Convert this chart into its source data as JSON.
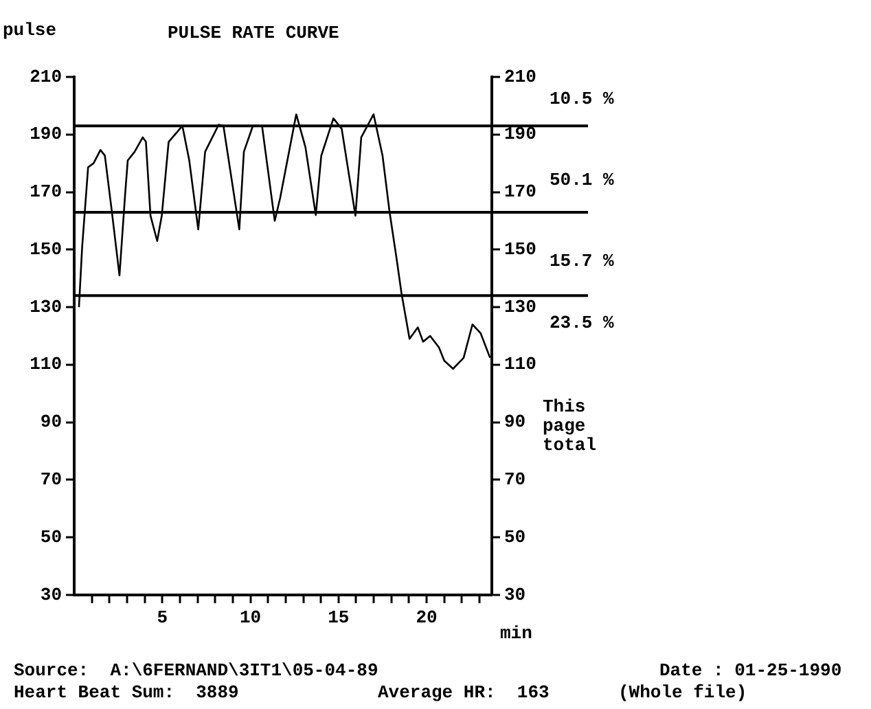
{
  "chart_data": {
    "type": "line",
    "title": "PULSE RATE CURVE",
    "ylabel": "pulse",
    "xlabel": "min",
    "x": [
      0.27,
      0.45,
      0.79,
      1.1,
      1.49,
      1.74,
      2.13,
      2.57,
      2.9,
      3.04,
      3.43,
      3.89,
      4.07,
      4.33,
      4.71,
      4.97,
      5.36,
      6.14,
      6.53,
      7.04,
      7.43,
      8.2,
      8.47,
      9.37,
      9.63,
      10.14,
      10.66,
      11.38,
      11.69,
      12.6,
      13.12,
      13.71,
      14.02,
      14.71,
      15.18,
      15.96,
      16.29,
      16.99,
      17.5,
      17.89,
      18.28,
      18.57,
      19.03,
      19.5,
      19.8,
      20.2,
      20.7,
      21.0,
      21.5,
      22.1,
      22.6,
      23.06,
      23.6
    ],
    "series": [
      {
        "color": "#000000",
        "values": [
          130,
          150.7,
          178.6,
          180,
          184.6,
          182.7,
          163.6,
          141,
          170,
          181,
          184,
          189,
          187.5,
          161.8,
          153,
          161.8,
          187.4,
          193,
          181,
          157,
          184,
          193.4,
          193,
          157,
          184,
          193,
          193,
          160,
          168,
          197,
          185.7,
          162,
          182.6,
          195.6,
          192,
          161.8,
          189,
          197,
          182.6,
          163.4,
          147.5,
          135,
          119,
          123,
          118,
          120,
          116,
          111.4,
          108.6,
          112.4,
          124,
          121,
          112.4
        ]
      }
    ],
    "xlim": [
      0,
      23.7
    ],
    "xticks": [
      {
        "value": 1,
        "label": null
      },
      {
        "value": 2,
        "label": null
      },
      {
        "value": 3,
        "label": null
      },
      {
        "value": 4,
        "label": null
      },
      5,
      {
        "value": 6,
        "label": null
      },
      {
        "value": 7,
        "label": null
      },
      {
        "value": 8,
        "label": null
      },
      {
        "value": 9,
        "label": null
      },
      10,
      {
        "value": 11,
        "label": null
      },
      {
        "value": 12,
        "label": null
      },
      {
        "value": 13,
        "label": null
      },
      {
        "value": 14,
        "label": null
      },
      15,
      {
        "value": 16,
        "label": null
      },
      {
        "value": 17,
        "label": null
      },
      {
        "value": 18,
        "label": null
      },
      {
        "value": 19,
        "label": null
      },
      20,
      {
        "value": 21,
        "label": null
      },
      {
        "value": 22,
        "label": null
      },
      {
        "value": 23,
        "label": null
      }
    ],
    "ylim": [
      30,
      210
    ],
    "yticks": [
      30,
      50,
      70,
      90,
      110,
      130,
      150,
      170,
      190,
      210
    ],
    "y2lim": [
      30,
      210
    ],
    "y2ticks": [
      30,
      50,
      70,
      90,
      110,
      130,
      150,
      170,
      190,
      210
    ],
    "ref_lines": [
      {
        "axis": "y",
        "value": 193,
        "color": "#000000"
      },
      {
        "axis": "y",
        "value": 163,
        "color": "#000000"
      },
      {
        "axis": "y",
        "value": 134,
        "color": "#000000"
      }
    ],
    "annotations": [
      "10.5 %",
      "50.1 %",
      "15.7 %",
      "23.5 %",
      "This page total",
      "Source:  A:\\6FERNAND\\3IT1\\05-04-89",
      "Date : 01-25-1990",
      "Heart Beat Sum:  3889",
      "Average HR:  163",
      "(Whole file)"
    ],
    "grid": false,
    "legend": false,
    "marker": "none",
    "line_style": "solid"
  }
}
